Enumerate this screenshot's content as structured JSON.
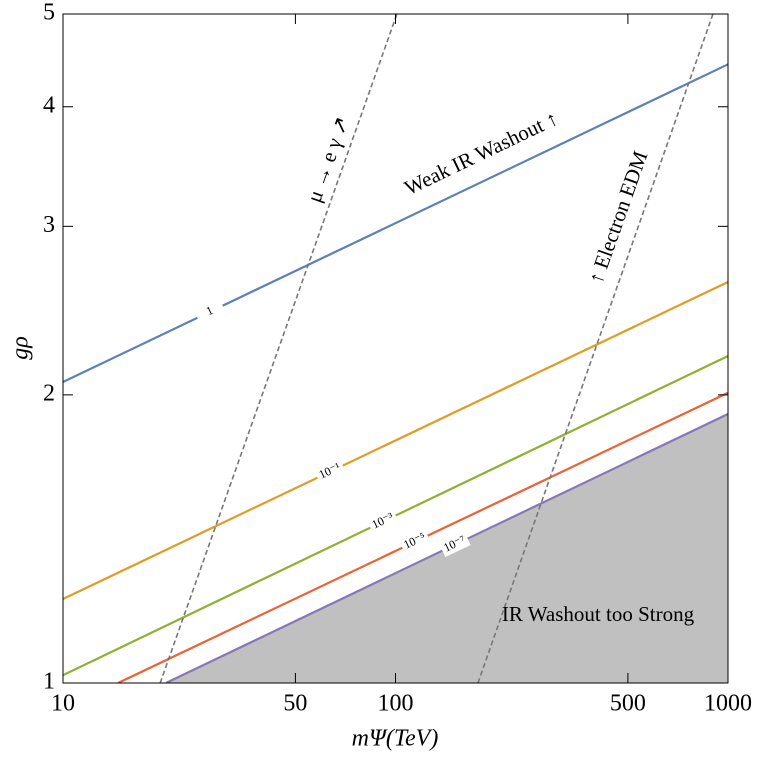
{
  "chart_data": {
    "type": "line",
    "x_label": "mΨ(TeV)",
    "y_label": "gρ",
    "x_log": true,
    "y_log": true,
    "xlim": [
      10,
      1000
    ],
    "ylim": [
      1,
      5
    ],
    "xticks": [
      10,
      50,
      100,
      500,
      1000
    ],
    "yticks": [
      1,
      2,
      3,
      4,
      5
    ],
    "series": [
      {
        "name": "1",
        "color": "#5e81b5",
        "x": [
          10,
          1000
        ],
        "values": [
          2.063,
          4.43
        ]
      },
      {
        "name": "10⁻¹",
        "color": "#e19c24",
        "x": [
          10,
          1000
        ],
        "values": [
          1.224,
          2.624
        ]
      },
      {
        "name": "10⁻³",
        "color": "#8fb032",
        "x": [
          10,
          1000
        ],
        "values": [
          1.019,
          2.196
        ]
      },
      {
        "name": "10⁻⁵",
        "color": "#eb6235",
        "x": [
          14.64,
          1000
        ],
        "values": [
          1,
          2.01
        ]
      },
      {
        "name": "10⁻⁷",
        "color": "#8778b3",
        "x": [
          20.4,
          1000
        ],
        "values": [
          1,
          1.91
        ],
        "fill_below": "#c0c0c0"
      },
      {
        "color": "#777777",
        "dashed": true,
        "x": [
          19.6,
          101
        ],
        "values": [
          1,
          5
        ]
      },
      {
        "color": "#777777",
        "dashed": true,
        "x": [
          177,
          901
        ],
        "values": [
          1,
          5
        ]
      }
    ],
    "annotations": [
      "Weak IR Washout ↑",
      "μ → e γ ↗",
      "↑ Electron EDM",
      "IR Washout too Strong"
    ]
  }
}
